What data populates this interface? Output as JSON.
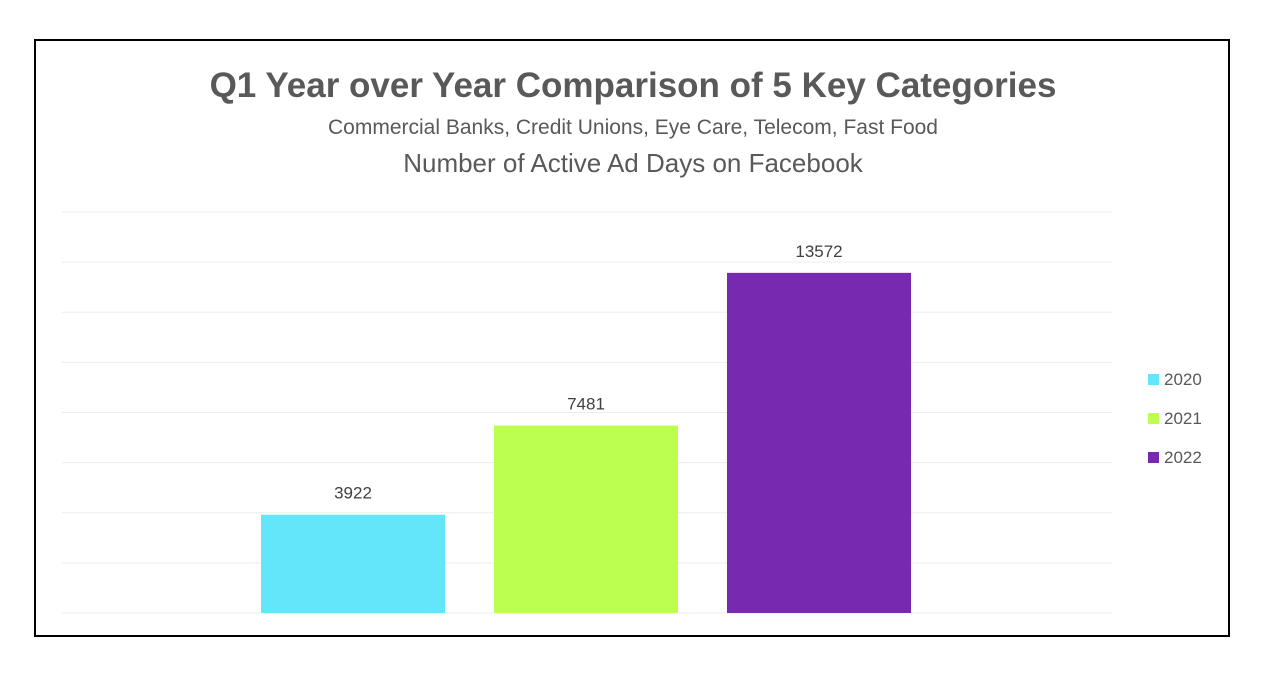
{
  "chart_data": {
    "type": "bar",
    "title": "Q1 Year over Year Comparison of 5 Key Categories",
    "subtitle": "Commercial Banks, Credit Unions, Eye Care, Telecom, Fast Food",
    "subtitle2": "Number of Active Ad Days on Facebook",
    "xlabel": "",
    "ylabel": "",
    "ylim": [
      0,
      16000
    ],
    "grid": true,
    "legend_position": "right",
    "categories": [
      "2020",
      "2021",
      "2022"
    ],
    "values": [
      3922,
      7481,
      13572
    ],
    "series": [
      {
        "name": "2020",
        "value": 3922,
        "label": "3922",
        "color": "#63E6FA"
      },
      {
        "name": "2021",
        "value": 7481,
        "label": "7481",
        "color": "#BDFF4F"
      },
      {
        "name": "2022",
        "value": 13572,
        "label": "13572",
        "color": "#772AAF"
      }
    ]
  },
  "colors": {
    "title": "#595959",
    "gridline": "#EDEDED",
    "frame": "#000000"
  }
}
